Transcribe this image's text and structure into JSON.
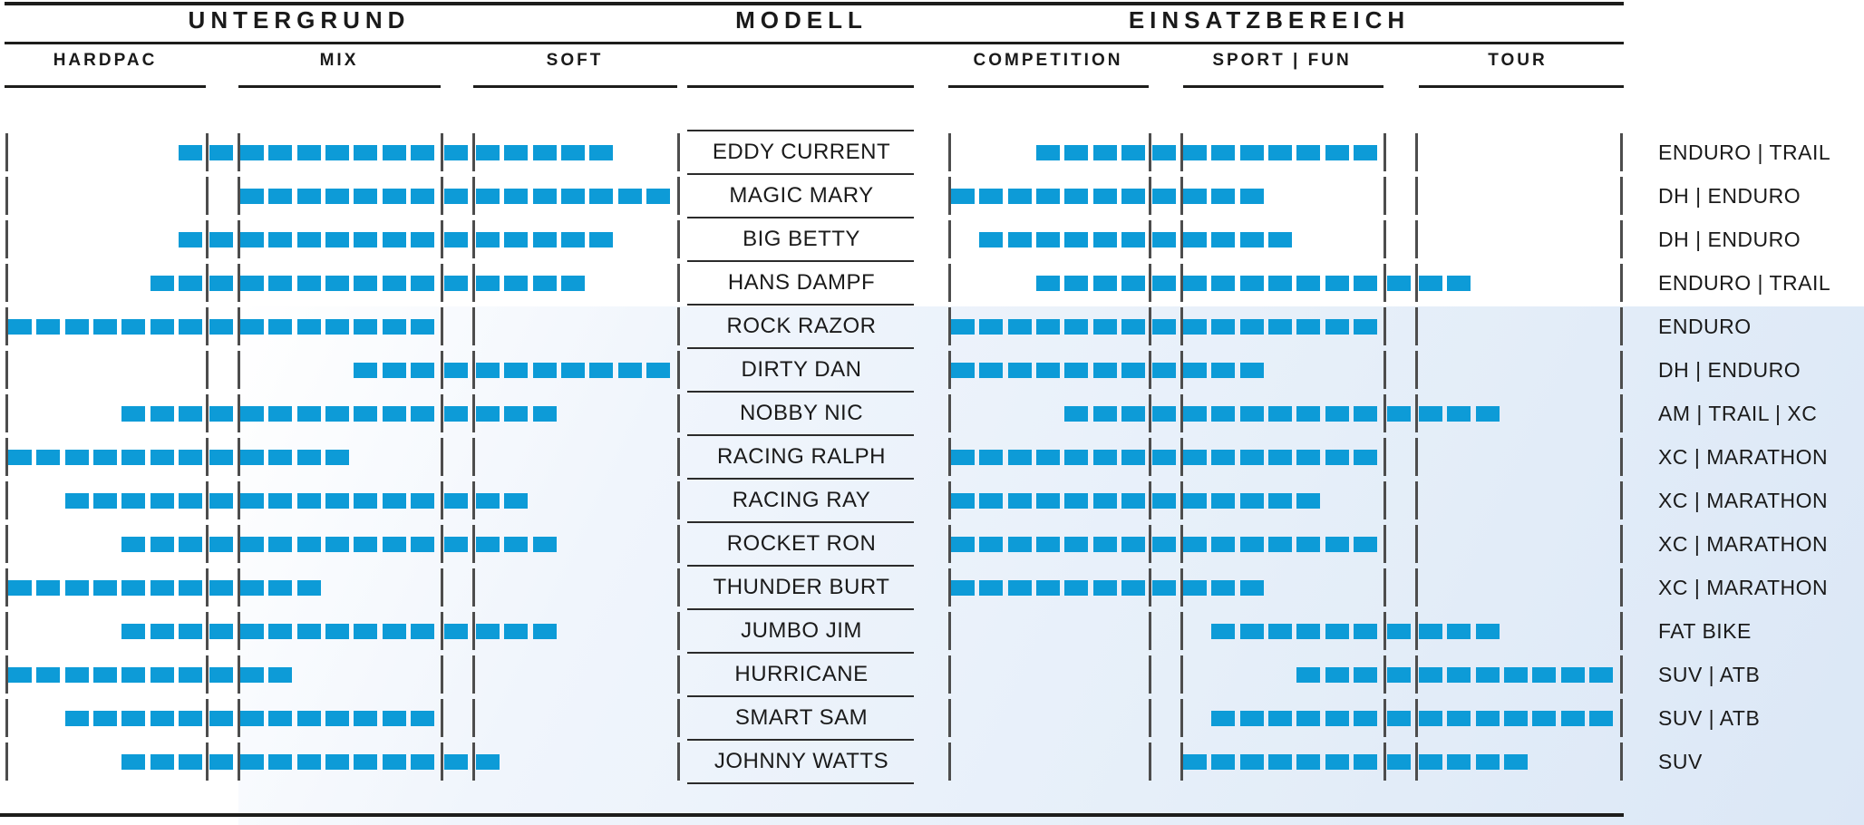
{
  "header": {
    "untergrund": "UNTERGRUND",
    "modell": "MODELL",
    "einsatzbereich": "EINSATZBEREICH"
  },
  "colors": {
    "bar": "#0d9bd7",
    "divider": "#4d4d4d",
    "rule": "#1d1d1b",
    "panel_tint": "#dbe7f6"
  },
  "chart_data": {
    "type": "range-bar-matrix",
    "title": "",
    "left_axis_title": "UNTERGRUND",
    "center_column_title": "MODELL",
    "right_axis_title": "EINSATZBEREICH",
    "left_zones": [
      "HARDPAC",
      "MIX",
      "SOFT"
    ],
    "right_zones": [
      "COMPETITION",
      "SPORT | FUN",
      "TOUR"
    ],
    "scale_note": "each block has 23 slots: slots 1-7 = zone 1, slot 8 = transition, slots 9-15 = zone 2, slot 16 = transition, slots 17-23 = zone 3; ranges are inclusive filled-slot runs",
    "models": [
      {
        "name": "EDDY CURRENT",
        "untergrund": [
          7,
          21
        ],
        "einsatzbereich": [
          4,
          15
        ],
        "category": "ENDURO | TRAIL"
      },
      {
        "name": "MAGIC MARY",
        "untergrund": [
          9,
          23
        ],
        "einsatzbereich": [
          1,
          11
        ],
        "category": "DH | ENDURO"
      },
      {
        "name": "BIG BETTY",
        "untergrund": [
          7,
          21
        ],
        "einsatzbereich": [
          2,
          12
        ],
        "category": "DH | ENDURO"
      },
      {
        "name": "HANS DAMPF",
        "untergrund": [
          6,
          20
        ],
        "einsatzbereich": [
          4,
          18
        ],
        "category": "ENDURO | TRAIL"
      },
      {
        "name": "ROCK RAZOR",
        "untergrund": [
          1,
          15
        ],
        "einsatzbereich": [
          1,
          15
        ],
        "category": "ENDURO"
      },
      {
        "name": "DIRTY DAN",
        "untergrund": [
          13,
          23
        ],
        "einsatzbereich": [
          1,
          11
        ],
        "category": "DH | ENDURO"
      },
      {
        "name": "NOBBY NIC",
        "untergrund": [
          5,
          19
        ],
        "einsatzbereich": [
          5,
          19
        ],
        "category": "AM | TRAIL | XC"
      },
      {
        "name": "RACING RALPH",
        "untergrund": [
          1,
          12
        ],
        "einsatzbereich": [
          1,
          15
        ],
        "category": "XC | MARATHON"
      },
      {
        "name": "RACING RAY",
        "untergrund": [
          3,
          18
        ],
        "einsatzbereich": [
          1,
          13
        ],
        "category": "XC | MARATHON"
      },
      {
        "name": "ROCKET RON",
        "untergrund": [
          5,
          19
        ],
        "einsatzbereich": [
          1,
          15
        ],
        "category": "XC | MARATHON"
      },
      {
        "name": "THUNDER BURT",
        "untergrund": [
          1,
          11
        ],
        "einsatzbereich": [
          1,
          11
        ],
        "category": "XC | MARATHON"
      },
      {
        "name": "JUMBO JIM",
        "untergrund": [
          5,
          19
        ],
        "einsatzbereich": [
          10,
          19
        ],
        "category": "FAT BIKE"
      },
      {
        "name": "HURRICANE",
        "untergrund": [
          1,
          10
        ],
        "einsatzbereich": [
          13,
          23
        ],
        "category": "SUV | ATB"
      },
      {
        "name": "SMART SAM",
        "untergrund": [
          3,
          15
        ],
        "einsatzbereich": [
          10,
          23
        ],
        "category": "SUV | ATB"
      },
      {
        "name": "JOHNNY WATTS",
        "untergrund": [
          5,
          17
        ],
        "einsatzbereich": [
          9,
          20
        ],
        "category": "SUV"
      }
    ]
  }
}
